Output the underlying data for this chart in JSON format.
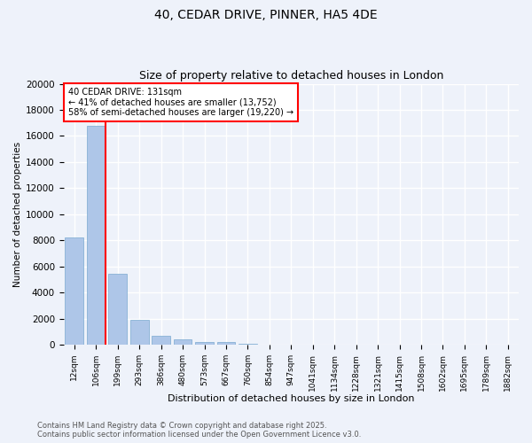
{
  "title_line1": "40, CEDAR DRIVE, PINNER, HA5 4DE",
  "title_line2": "Size of property relative to detached houses in London",
  "xlabel": "Distribution of detached houses by size in London",
  "ylabel": "Number of detached properties",
  "categories": [
    "12sqm",
    "106sqm",
    "199sqm",
    "293sqm",
    "386sqm",
    "480sqm",
    "573sqm",
    "667sqm",
    "760sqm",
    "854sqm",
    "947sqm",
    "1041sqm",
    "1134sqm",
    "1228sqm",
    "1321sqm",
    "1415sqm",
    "1508sqm",
    "1602sqm",
    "1695sqm",
    "1789sqm",
    "1882sqm"
  ],
  "values": [
    8200,
    16800,
    5400,
    1900,
    700,
    380,
    230,
    170,
    100,
    0,
    0,
    0,
    0,
    0,
    0,
    0,
    0,
    0,
    0,
    0,
    0
  ],
  "bar_color": "#aec6e8",
  "bar_edge_color": "#7aaad0",
  "vline_color": "red",
  "annotation_title": "40 CEDAR DRIVE: 131sqm",
  "annotation_line1": "← 41% of detached houses are smaller (13,752)",
  "annotation_line2": "58% of semi-detached houses are larger (19,220) →",
  "annotation_box_color": "white",
  "annotation_box_edge": "red",
  "ylim": [
    0,
    20000
  ],
  "yticks": [
    0,
    2000,
    4000,
    6000,
    8000,
    10000,
    12000,
    14000,
    16000,
    18000,
    20000
  ],
  "footer_line1": "Contains HM Land Registry data © Crown copyright and database right 2025.",
  "footer_line2": "Contains public sector information licensed under the Open Government Licence v3.0.",
  "bg_color": "#eef2fa",
  "grid_color": "white"
}
